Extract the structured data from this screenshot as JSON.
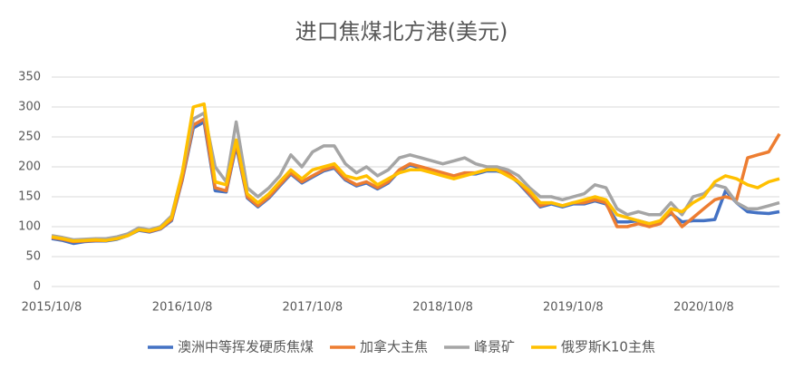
{
  "chart_data": {
    "type": "line",
    "title": "进口焦煤北方港(美元)",
    "x": [
      "2015/10/8",
      "2015/11/8",
      "2015/12/8",
      "2016/1/8",
      "2016/2/8",
      "2016/3/8",
      "2016/4/8",
      "2016/5/8",
      "2016/6/8",
      "2016/7/8",
      "2016/8/8",
      "2016/9/8",
      "2016/10/8",
      "2016/11/8",
      "2016/12/8",
      "2017/1/8",
      "2017/2/8",
      "2017/3/8",
      "2017/4/8",
      "2017/5/8",
      "2017/6/8",
      "2017/7/8",
      "2017/8/8",
      "2017/9/8",
      "2017/10/8",
      "2017/11/8",
      "2017/12/8",
      "2018/1/8",
      "2018/2/8",
      "2018/3/8",
      "2018/4/8",
      "2018/5/8",
      "2018/6/8",
      "2018/7/8",
      "2018/8/8",
      "2018/9/8",
      "2018/10/8",
      "2018/11/8",
      "2018/12/8",
      "2019/1/8",
      "2019/2/8",
      "2019/3/8",
      "2019/4/8",
      "2019/5/8",
      "2019/6/8",
      "2019/7/8",
      "2019/8/8",
      "2019/9/8",
      "2019/10/8",
      "2019/11/8",
      "2019/12/8",
      "2020/1/8",
      "2020/2/8",
      "2020/3/8",
      "2020/4/8",
      "2020/5/8",
      "2020/6/8",
      "2020/7/8",
      "2020/8/8",
      "2020/9/8",
      "2020/10/8",
      "2020/11/8",
      "2020/12/8",
      "2021/1/8",
      "2021/2/8",
      "2021/3/8",
      "2021/4/8",
      "2021/5/8"
    ],
    "series": [
      {
        "name": "澳洲中等挥发硬质焦煤",
        "color": "#4472c4",
        "values": [
          80,
          77,
          72,
          75,
          76,
          76,
          79,
          85,
          94,
          91,
          96,
          110,
          178,
          265,
          275,
          160,
          158,
          235,
          148,
          133,
          148,
          168,
          188,
          173,
          183,
          193,
          198,
          178,
          168,
          173,
          163,
          173,
          193,
          203,
          198,
          193,
          188,
          183,
          188,
          188,
          193,
          193,
          188,
          173,
          153,
          133,
          138,
          133,
          138,
          138,
          143,
          138,
          108,
          108,
          110,
          105,
          108,
          122,
          108,
          110,
          110,
          112,
          160,
          140,
          125,
          123,
          122,
          125
        ]
      },
      {
        "name": "加拿大主焦",
        "color": "#ed7d31",
        "values": [
          82,
          79,
          75,
          76,
          77,
          77,
          80,
          86,
          95,
          92,
          97,
          112,
          180,
          270,
          280,
          165,
          160,
          240,
          150,
          135,
          150,
          170,
          190,
          175,
          185,
          195,
          200,
          180,
          170,
          175,
          165,
          175,
          195,
          205,
          200,
          195,
          190,
          185,
          190,
          190,
          195,
          195,
          190,
          175,
          155,
          135,
          140,
          135,
          140,
          140,
          145,
          140,
          100,
          100,
          105,
          100,
          105,
          125,
          100,
          115,
          130,
          145,
          150,
          145,
          215,
          220,
          225,
          255
        ]
      },
      {
        "name": "峰景矿",
        "color": "#a5a5a5",
        "values": [
          85,
          82,
          78,
          79,
          80,
          80,
          83,
          88,
          98,
          95,
          100,
          118,
          190,
          280,
          290,
          200,
          175,
          275,
          165,
          150,
          165,
          185,
          220,
          200,
          225,
          235,
          235,
          205,
          190,
          200,
          185,
          195,
          215,
          220,
          215,
          210,
          205,
          210,
          215,
          205,
          200,
          200,
          195,
          185,
          165,
          150,
          150,
          145,
          150,
          155,
          170,
          165,
          130,
          120,
          125,
          120,
          120,
          140,
          120,
          150,
          155,
          170,
          165,
          140,
          130,
          130,
          135,
          140
        ]
      },
      {
        "name": "俄罗斯K10主焦",
        "color": "#ffc000",
        "values": [
          83,
          80,
          76,
          77,
          78,
          77,
          80,
          85,
          95,
          93,
          98,
          115,
          190,
          300,
          305,
          175,
          170,
          245,
          155,
          140,
          155,
          175,
          195,
          180,
          195,
          200,
          205,
          185,
          180,
          185,
          170,
          180,
          190,
          195,
          195,
          190,
          185,
          180,
          185,
          190,
          195,
          195,
          185,
          175,
          160,
          140,
          140,
          135,
          140,
          145,
          150,
          145,
          120,
          115,
          110,
          105,
          110,
          130,
          125,
          140,
          150,
          175,
          185,
          180,
          170,
          165,
          175,
          180
        ]
      }
    ],
    "xlim": [
      "2015/10/8",
      "2021/5/8"
    ],
    "xticks": [
      "2015/10/8",
      "2016/10/8",
      "2017/10/8",
      "2018/10/8",
      "2019/10/8",
      "2020/10/8"
    ],
    "ylim": [
      0,
      350
    ],
    "yticks": [
      0,
      50,
      100,
      150,
      200,
      250,
      300,
      350
    ],
    "grid": true,
    "legend": "bottom"
  }
}
